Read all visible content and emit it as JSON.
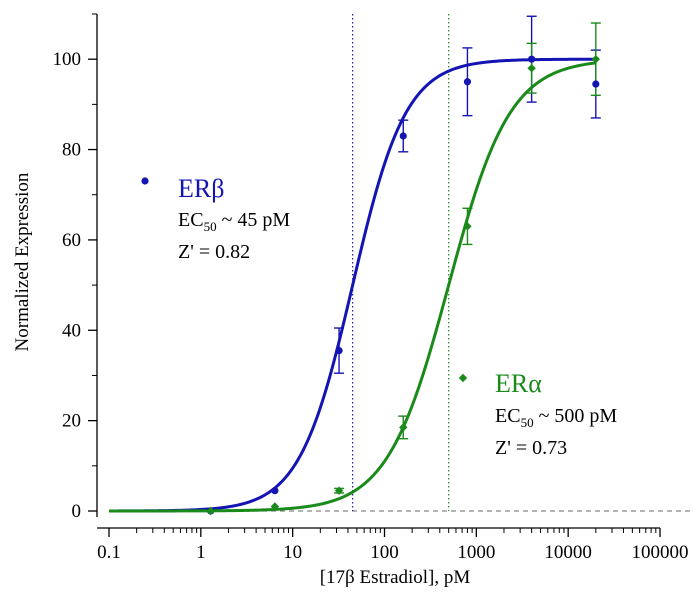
{
  "chart_data": {
    "type": "scatter",
    "x_scale": "log",
    "xlabel": "[17β Estradiol], pM",
    "ylabel": "Normalized Expression",
    "xlim": [
      0.1,
      100000
    ],
    "ylim": [
      0,
      110
    ],
    "x_ticks": [
      "0.1",
      "1",
      "10",
      "100",
      "1000",
      "10000",
      "100000"
    ],
    "y_ticks": [
      "0",
      "20",
      "40",
      "60",
      "80",
      "100"
    ],
    "baseline": 0,
    "series": [
      {
        "name": "ERβ",
        "color": "#1414b4",
        "marker": "circle",
        "ec50_label": "EC50 ~ 45 pM",
        "ec50_prefix": "EC",
        "ec50_sub": "50",
        "ec50_suffix": " ~ 45 pM",
        "z_label": "Z' = 0.82",
        "ec50": 45,
        "hill": 1.5,
        "points": [
          {
            "x": 1.28,
            "y": 0,
            "err": 0
          },
          {
            "x": 6.4,
            "y": 4.5,
            "err": 0
          },
          {
            "x": 32,
            "y": 35.5,
            "err": 5
          },
          {
            "x": 160,
            "y": 83,
            "err": 3.5
          },
          {
            "x": 800,
            "y": 95,
            "err": 7.5
          },
          {
            "x": 4000,
            "y": 100,
            "err": 9.5
          },
          {
            "x": 20000,
            "y": 94.5,
            "err": 7.5
          }
        ]
      },
      {
        "name": "ERα",
        "color": "#1a8a1a",
        "marker": "diamond",
        "ec50_label": "EC50 ~ 500 pM",
        "ec50_prefix": "EC",
        "ec50_sub": "50",
        "ec50_suffix": " ~ 500 pM",
        "z_label": "Z' =  0.73",
        "ec50": 500,
        "hill": 1.3,
        "points": [
          {
            "x": 1.28,
            "y": 0,
            "err": 0
          },
          {
            "x": 6.4,
            "y": 1,
            "err": 0
          },
          {
            "x": 32,
            "y": 4.5,
            "err": 0.5
          },
          {
            "x": 160,
            "y": 18.5,
            "err": 2.5
          },
          {
            "x": 800,
            "y": 63,
            "err": 4
          },
          {
            "x": 4000,
            "y": 98,
            "err": 5.5
          },
          {
            "x": 20000,
            "y": 100,
            "err": 8
          }
        ]
      }
    ]
  }
}
